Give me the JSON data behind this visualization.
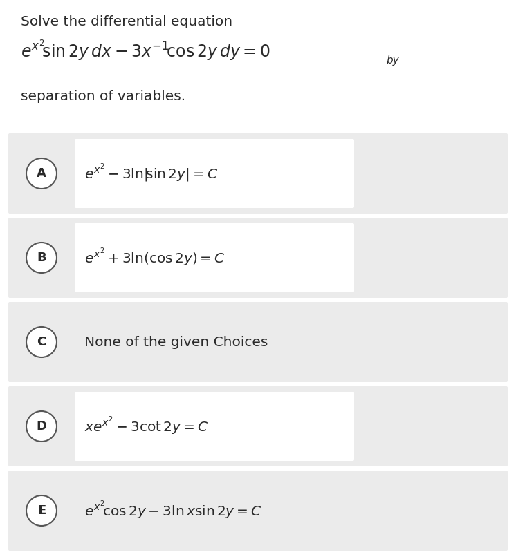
{
  "title_line1": "Solve the differential equation",
  "title_line2_math": "$e^{x^2}\\!\\sin 2y\\, dx - 3x^{-1}\\!\\cos 2y\\, dy = 0$",
  "title_line2_by": "by",
  "title_line3": "separation of variables.",
  "choices": [
    {
      "label": "A",
      "formula": "$e^{x^2} - 3\\ln|\\!\\sin 2y| = C$",
      "has_inner_box": true
    },
    {
      "label": "B",
      "formula": "$e^{x^2} + 3\\ln(\\cos 2y) = C$",
      "has_inner_box": true
    },
    {
      "label": "C",
      "formula": "None of the given Choices",
      "has_inner_box": false
    },
    {
      "label": "D",
      "formula": "$xe^{x^2} - 3\\cot 2y = C$",
      "has_inner_box": true
    },
    {
      "label": "E",
      "formula": "$e^{x^2}\\!\\cos 2y - 3\\ln x \\sin 2y = C$",
      "has_inner_box": false
    }
  ],
  "bg_color": "#ffffff",
  "choice_bg": "#ebebeb",
  "inner_bg": "#ffffff",
  "circle_edge_color": "#555555",
  "text_color": "#2a2a2a",
  "title_fontsize": 14.5,
  "eq_fontsize": 17,
  "by_fontsize": 11,
  "formula_fontsize": 14.5,
  "choice_label_fontsize": 13,
  "fig_width": 7.46,
  "fig_height": 8.09,
  "dpi": 100
}
